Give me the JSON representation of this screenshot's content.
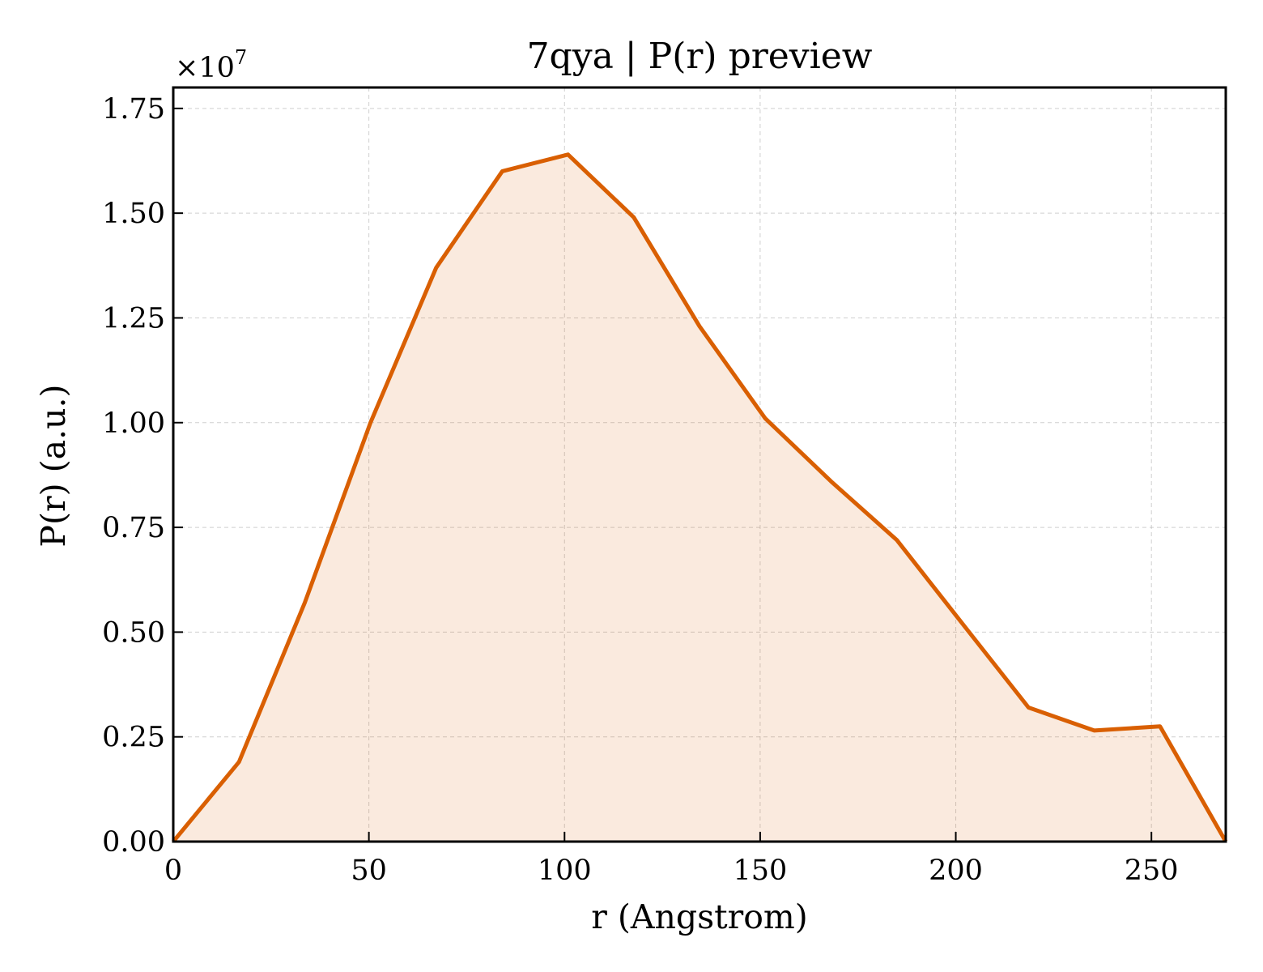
{
  "chart_data": {
    "type": "area",
    "title": "7qya | P(r) preview",
    "xlabel": "r (Angstrom)",
    "ylabel": "P(r) (a.u.)",
    "y_offset_label": "×10",
    "y_offset_exponent": "7",
    "xlim": [
      0,
      269
    ],
    "ylim": [
      0,
      1.8
    ],
    "x_ticks": [
      0,
      50,
      100,
      150,
      200,
      250
    ],
    "x_tick_labels": [
      "0",
      "50",
      "100",
      "150",
      "200",
      "250"
    ],
    "y_ticks": [
      0,
      0.25,
      0.5,
      0.75,
      1.0,
      1.25,
      1.5,
      1.75
    ],
    "y_tick_labels": [
      "0.00",
      "0.25",
      "0.50",
      "0.75",
      "1.00",
      "1.25",
      "1.50",
      "1.75"
    ],
    "grid": true,
    "series": [
      {
        "color": "#d95f02",
        "fill_color": "#d95f02",
        "fill_opacity": 0.13,
        "x": [
          0,
          16.8,
          33.6,
          50.4,
          67.2,
          84.1,
          100.9,
          117.7,
          134.5,
          151.3,
          168.1,
          184.9,
          201.7,
          218.6,
          235.4,
          252.2,
          269
        ],
        "y": [
          0,
          0.19,
          0.57,
          1.0,
          1.37,
          1.6,
          1.64,
          1.49,
          1.23,
          1.01,
          0.86,
          0.72,
          0.52,
          0.32,
          0.265,
          0.275,
          0
        ]
      }
    ]
  }
}
